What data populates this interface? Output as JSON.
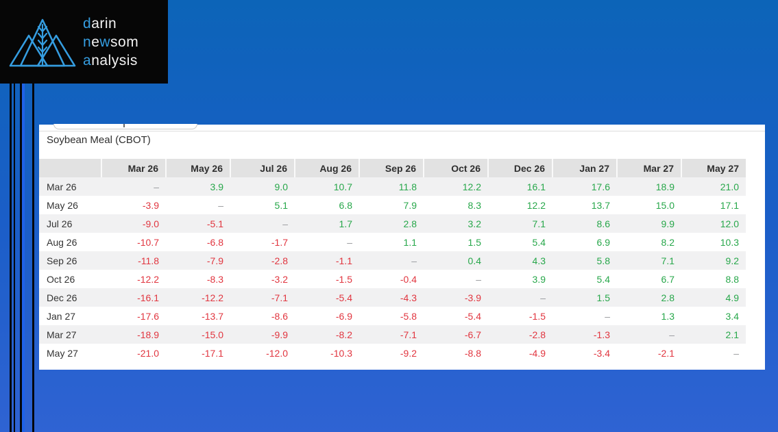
{
  "colors": {
    "accent_blue": "#359de0",
    "positive_green": "#27a74a",
    "negative_red": "#e1353f",
    "dash_gray": "#97999c",
    "stripe_bright_blue": "#1f62e8",
    "background_top": "#0c64b8",
    "background_bottom": "#2f63d3"
  },
  "logo": {
    "icon": "mountains-wheat-icon",
    "brand_lines": [
      [
        {
          "t": "d",
          "c": "accent"
        },
        {
          "t": "arin",
          "c": "white"
        }
      ],
      [
        {
          "t": "n",
          "c": "accent"
        },
        {
          "t": "e",
          "c": "white"
        },
        {
          "t": "w",
          "c": "accent"
        },
        {
          "t": "som",
          "c": "white"
        }
      ],
      [
        {
          "t": "a",
          "c": "accent"
        },
        {
          "t": "nalysis",
          "c": "white"
        }
      ]
    ]
  },
  "panel": {
    "title": "Soybean Meal (CBOT)"
  },
  "table": {
    "columns": [
      "Mar 26",
      "May 26",
      "Jul 26",
      "Aug 26",
      "Sep 26",
      "Oct 26",
      "Dec 26",
      "Jan 27",
      "Mar 27",
      "May 27"
    ],
    "rows": [
      {
        "label": "Mar 26",
        "values": [
          "–",
          "3.9",
          "9.0",
          "10.7",
          "11.8",
          "12.2",
          "16.1",
          "17.6",
          "18.9",
          "21.0"
        ]
      },
      {
        "label": "May 26",
        "values": [
          "-3.9",
          "–",
          "5.1",
          "6.8",
          "7.9",
          "8.3",
          "12.2",
          "13.7",
          "15.0",
          "17.1"
        ]
      },
      {
        "label": "Jul 26",
        "values": [
          "-9.0",
          "-5.1",
          "–",
          "1.7",
          "2.8",
          "3.2",
          "7.1",
          "8.6",
          "9.9",
          "12.0"
        ]
      },
      {
        "label": "Aug 26",
        "values": [
          "-10.7",
          "-6.8",
          "-1.7",
          "–",
          "1.1",
          "1.5",
          "5.4",
          "6.9",
          "8.2",
          "10.3"
        ]
      },
      {
        "label": "Sep 26",
        "values": [
          "-11.8",
          "-7.9",
          "-2.8",
          "-1.1",
          "–",
          "0.4",
          "4.3",
          "5.8",
          "7.1",
          "9.2"
        ]
      },
      {
        "label": "Oct 26",
        "values": [
          "-12.2",
          "-8.3",
          "-3.2",
          "-1.5",
          "-0.4",
          "–",
          "3.9",
          "5.4",
          "6.7",
          "8.8"
        ]
      },
      {
        "label": "Dec 26",
        "values": [
          "-16.1",
          "-12.2",
          "-7.1",
          "-5.4",
          "-4.3",
          "-3.9",
          "–",
          "1.5",
          "2.8",
          "4.9"
        ]
      },
      {
        "label": "Jan 27",
        "values": [
          "-17.6",
          "-13.7",
          "-8.6",
          "-6.9",
          "-5.8",
          "-5.4",
          "-1.5",
          "–",
          "1.3",
          "3.4"
        ]
      },
      {
        "label": "Mar 27",
        "values": [
          "-18.9",
          "-15.0",
          "-9.9",
          "-8.2",
          "-7.1",
          "-6.7",
          "-2.8",
          "-1.3",
          "–",
          "2.1"
        ]
      },
      {
        "label": "May 27",
        "values": [
          "-21.0",
          "-17.1",
          "-12.0",
          "-10.3",
          "-9.2",
          "-8.8",
          "-4.9",
          "-3.4",
          "-2.1",
          "–"
        ]
      }
    ]
  }
}
